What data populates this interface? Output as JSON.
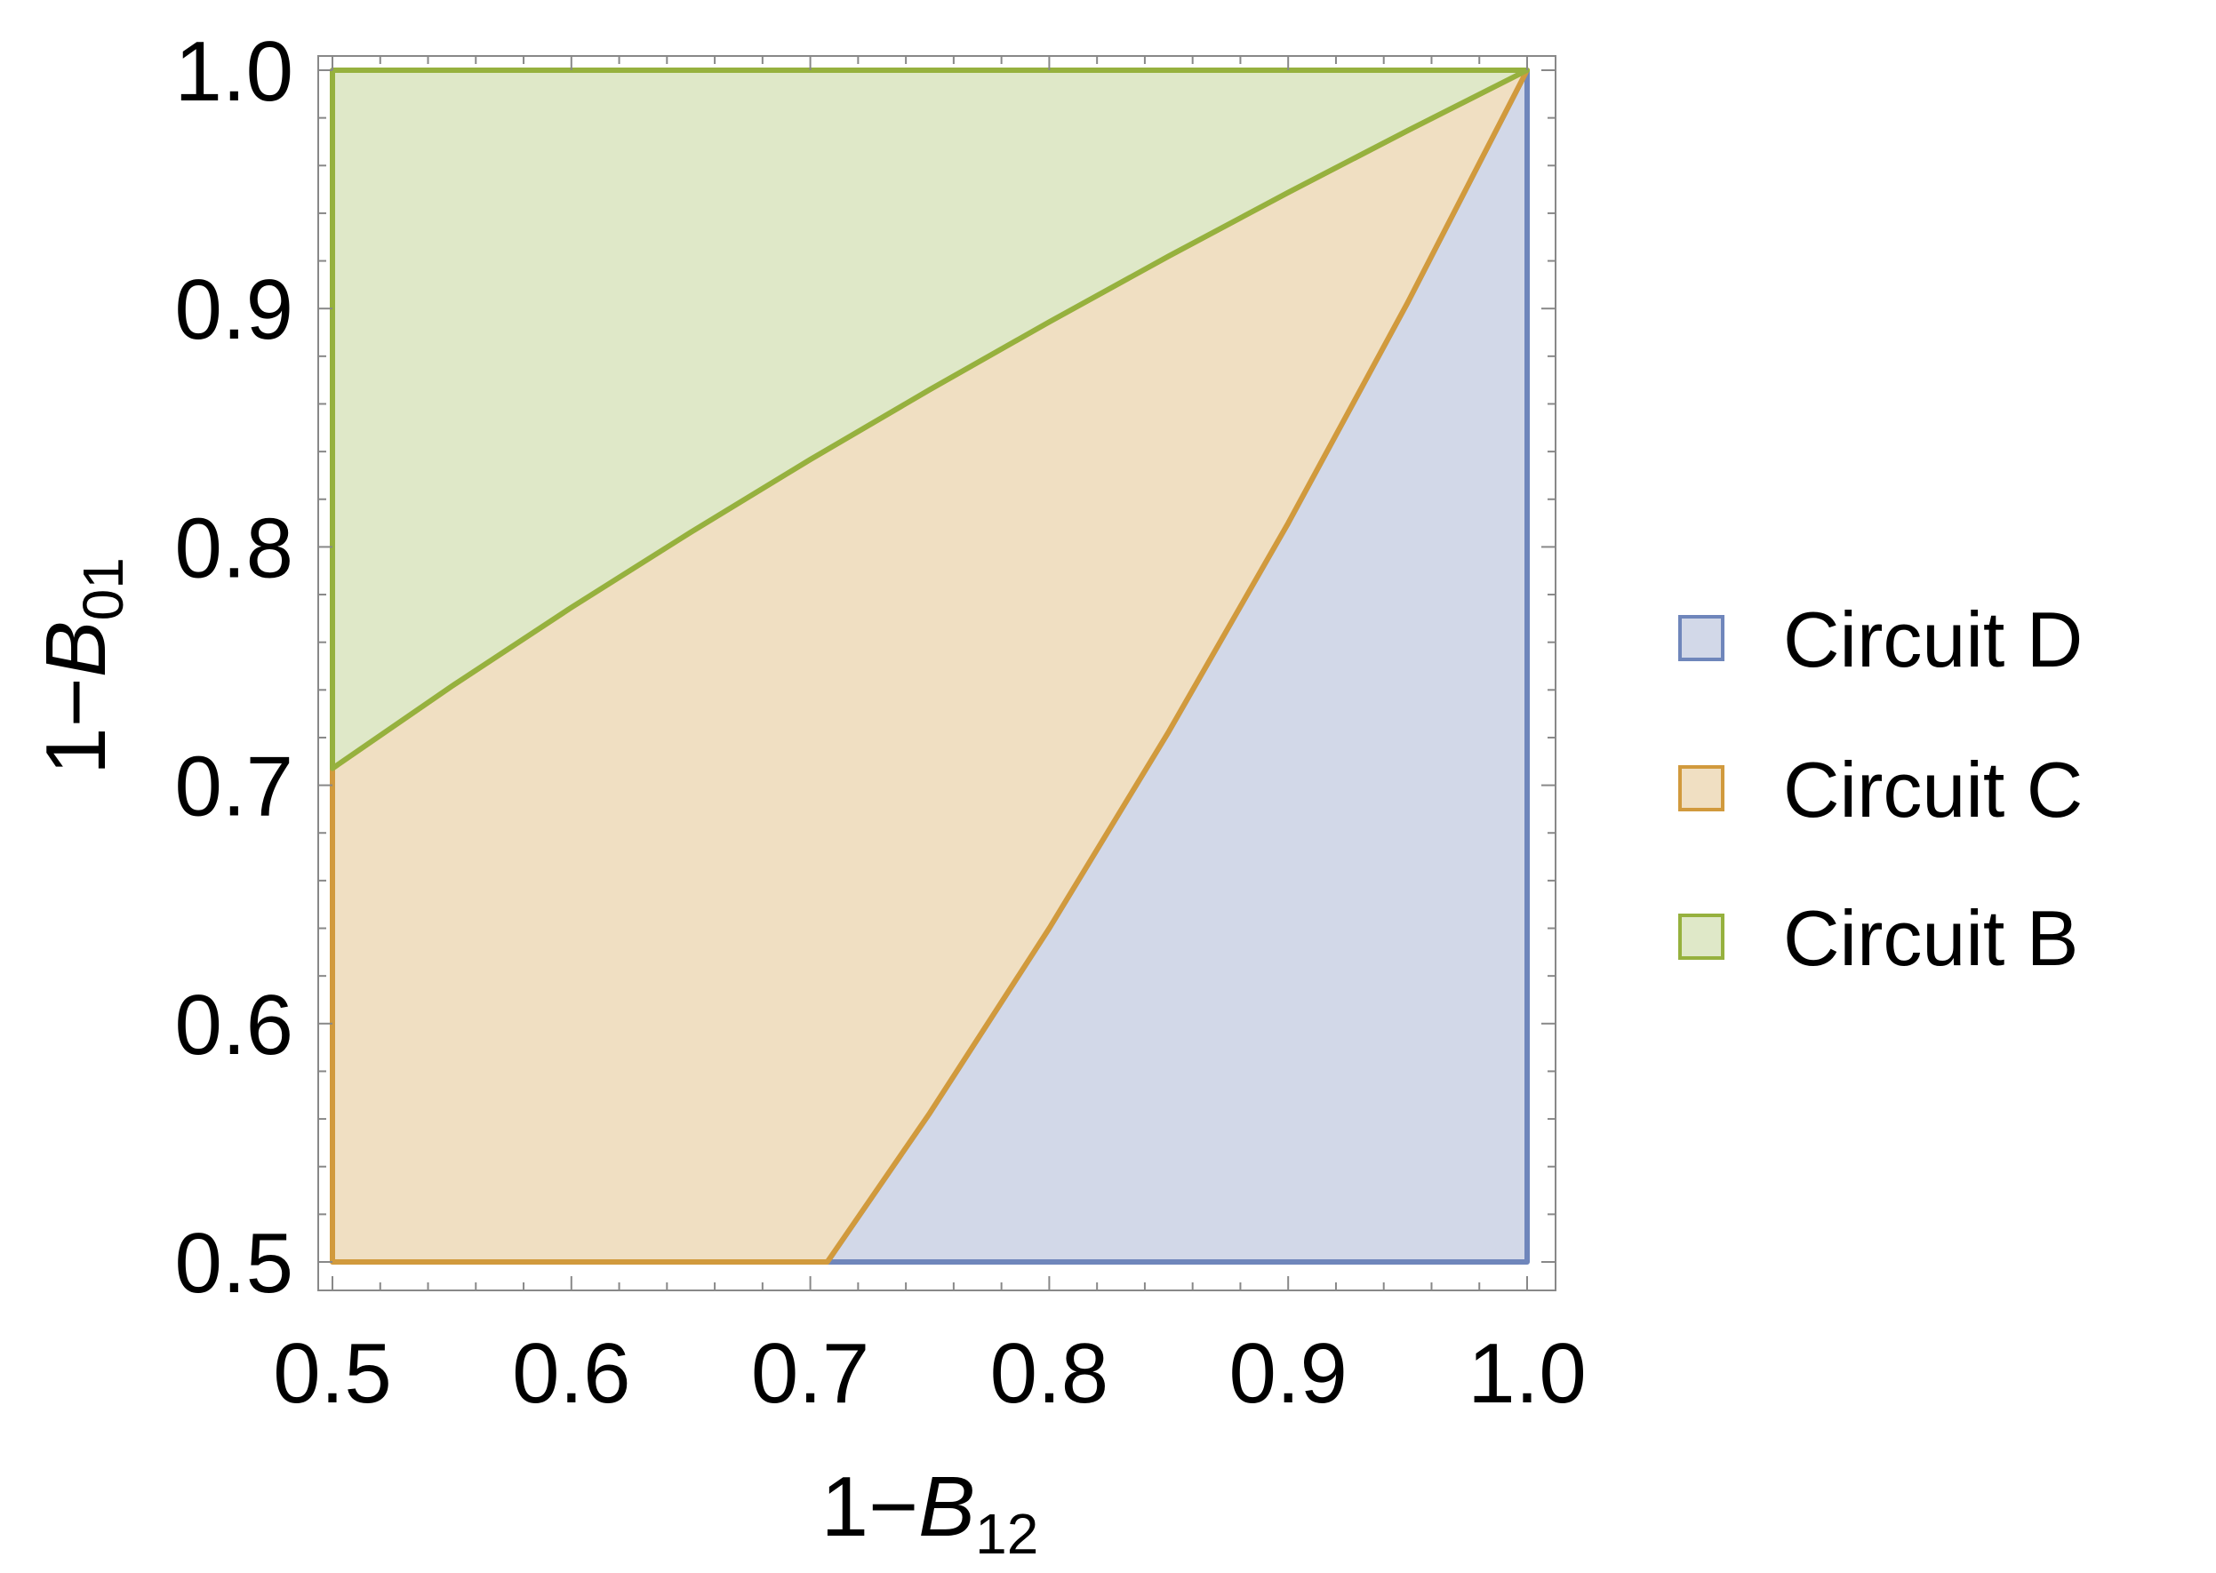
{
  "chart_data": {
    "type": "area",
    "xlabel": {
      "prefix": "1−",
      "var": "B",
      "sub": "12"
    },
    "ylabel": {
      "prefix": "1−",
      "var": "B",
      "sub": "01"
    },
    "xlim": [
      0.5,
      1.0
    ],
    "ylim": [
      0.5,
      1.0
    ],
    "xticks": [
      "0.5",
      "0.6",
      "0.7",
      "0.8",
      "0.9",
      "1.0"
    ],
    "yticks": [
      "0.5",
      "0.6",
      "0.7",
      "0.8",
      "0.9",
      "1.0"
    ],
    "grid": false,
    "legend_position": "right",
    "series": [
      {
        "name": "Circuit D",
        "stroke": "#6f86bb",
        "fill": "#d2d8e8",
        "points": [
          [
            0.7071,
            0.5
          ],
          [
            0.75,
            0.5625
          ],
          [
            0.8,
            0.64
          ],
          [
            0.85,
            0.7225
          ],
          [
            0.9,
            0.81
          ],
          [
            0.95,
            0.9025
          ],
          [
            1.0,
            1.0
          ],
          [
            1.0,
            0.5
          ]
        ]
      },
      {
        "name": "Circuit C",
        "stroke": "#d19a3d",
        "fill": "#f0dfc2",
        "points": [
          [
            0.5,
            0.5
          ],
          [
            0.5,
            0.7071
          ],
          [
            0.55,
            0.7416
          ],
          [
            0.6,
            0.7746
          ],
          [
            0.65,
            0.8062
          ],
          [
            0.7,
            0.8367
          ],
          [
            0.75,
            0.866
          ],
          [
            0.8,
            0.8944
          ],
          [
            0.85,
            0.922
          ],
          [
            0.9,
            0.9487
          ],
          [
            0.95,
            0.9747
          ],
          [
            1.0,
            1.0
          ],
          [
            0.95,
            0.9025
          ],
          [
            0.9,
            0.81
          ],
          [
            0.85,
            0.7225
          ],
          [
            0.8,
            0.64
          ],
          [
            0.75,
            0.5625
          ],
          [
            0.7071,
            0.5
          ]
        ]
      },
      {
        "name": "Circuit B",
        "stroke": "#96b13e",
        "fill": "#dfe8c8",
        "points": [
          [
            0.5,
            0.7071
          ],
          [
            0.5,
            1.0
          ],
          [
            1.0,
            1.0
          ],
          [
            0.95,
            0.9747
          ],
          [
            0.9,
            0.9487
          ],
          [
            0.85,
            0.922
          ],
          [
            0.8,
            0.8944
          ],
          [
            0.75,
            0.866
          ],
          [
            0.7,
            0.8367
          ],
          [
            0.65,
            0.8062
          ],
          [
            0.6,
            0.7746
          ],
          [
            0.55,
            0.7416
          ]
        ]
      }
    ],
    "legend_order": [
      "Circuit D",
      "Circuit C",
      "Circuit B"
    ]
  }
}
